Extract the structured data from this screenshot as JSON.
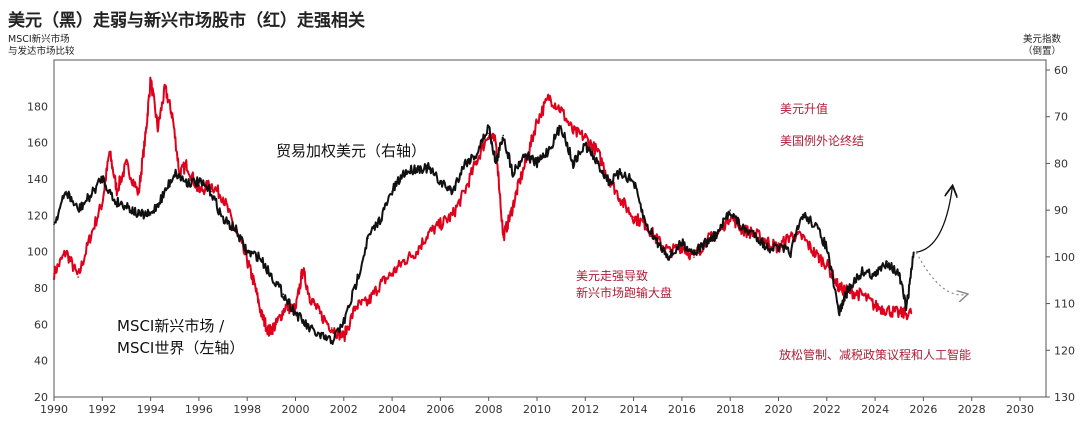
{
  "header": {
    "title": "美元（黑）走弱与新兴市场股市（红）走强相关",
    "left_axis_label": [
      "MSCI新兴市场",
      "与发达市场比较"
    ],
    "right_axis_label": [
      "美元指数",
      "（倒置）"
    ]
  },
  "annotations": {
    "dollar_series": "贸易加权美元（右轴）",
    "msci_series_line1": "MSCI新兴市场 /",
    "msci_series_line2": "MSCI世界（左轴）",
    "scenario_up": "美元升值",
    "scenario_end": "美国例外论终结",
    "dollar_strong_line1": "美元走强导致",
    "dollar_strong_line2": "新兴市场跑输大盘",
    "policy": "放松管制、减税政策议程和人工智能"
  },
  "colors": {
    "dollar": "#111111",
    "msci": "#e0001b",
    "annotation_red": "#b01c36"
  },
  "chart_data": {
    "type": "line",
    "x_range": [
      1990,
      2030
    ],
    "x_ticks": [
      "1990",
      "1992",
      "1994",
      "1996",
      "1998",
      "2000",
      "2002",
      "2004",
      "2006",
      "2008",
      "2010",
      "2012",
      "2014",
      "2016",
      "2018",
      "2020",
      "2022",
      "2024",
      "2026",
      "2028",
      "2030"
    ],
    "left_axis": {
      "ylim": [
        20,
        200
      ],
      "ticks": [
        "20",
        "40",
        "60",
        "80",
        "100",
        "120",
        "140",
        "160",
        "180"
      ]
    },
    "right_axis": {
      "ylim": [
        130,
        60
      ],
      "inverted": true,
      "ticks": [
        "60",
        "70",
        "80",
        "90",
        "100",
        "110",
        "120",
        "130"
      ]
    },
    "series": [
      {
        "axis": "left",
        "x": [
          1990,
          1990.5,
          1991,
          1991.5,
          1992,
          1992.3,
          1992.6,
          1993,
          1993.5,
          1993.8,
          1994,
          1994.3,
          1994.6,
          1994.9,
          1995.2,
          1995.5,
          1996,
          1996.5,
          1997,
          1997.5,
          1998,
          1998.3,
          1998.6,
          1998.9,
          1999.2,
          1999.6,
          2000,
          2000.3,
          2000.6,
          2001,
          2001.5,
          2002,
          2002.5,
          2003,
          2003.5,
          2004,
          2004.5,
          2005,
          2005.5,
          2006,
          2006.5,
          2007,
          2007.5,
          2008,
          2008.3,
          2008.6,
          2008.9,
          2009.2,
          2009.6,
          2010,
          2010.5,
          2011,
          2011.5,
          2012,
          2012.5,
          2013,
          2013.5,
          2014,
          2014.5,
          2015,
          2015.5,
          2016,
          2016.5,
          2017,
          2017.5,
          2018,
          2018.5,
          2019,
          2019.5,
          2020,
          2020.5,
          2021,
          2021.5,
          2022,
          2022.5,
          2023,
          2023.5,
          2024,
          2024.5,
          2025,
          2025.5
        ],
        "values": [
          88,
          100,
          86,
          108,
          127,
          155,
          134,
          148,
          132,
          165,
          195,
          168,
          190,
          175,
          143,
          148,
          133,
          137,
          130,
          112,
          95,
          82,
          65,
          56,
          60,
          70,
          68,
          90,
          75,
          66,
          58,
          53,
          70,
          72,
          82,
          88,
          95,
          100,
          110,
          115,
          120,
          133,
          150,
          165,
          160,
          108,
          120,
          135,
          152,
          172,
          185,
          178,
          166,
          163,
          155,
          140,
          128,
          119,
          115,
          106,
          100,
          103,
          97,
          106,
          110,
          120,
          112,
          110,
          106,
          102,
          109,
          108,
          99,
          93,
          80,
          78,
          76,
          70,
          68,
          66,
          66
        ]
      },
      {
        "axis": "right",
        "x": [
          1990,
          1990.5,
          1991,
          1991.5,
          1992,
          1992.5,
          1993,
          1993.5,
          1994,
          1994.5,
          1995,
          1995.5,
          1996,
          1996.5,
          1997,
          1997.5,
          1998,
          1998.5,
          1999,
          1999.5,
          2000,
          2000.5,
          2001,
          2001.5,
          2002,
          2002.5,
          2003,
          2003.5,
          2004,
          2004.5,
          2005,
          2005.5,
          2006,
          2006.5,
          2007,
          2007.5,
          2008,
          2008.3,
          2008.6,
          2009,
          2009.5,
          2010,
          2010.5,
          2011,
          2011.5,
          2012,
          2012.5,
          2013,
          2013.5,
          2014,
          2014.5,
          2015,
          2015.5,
          2016,
          2016.5,
          2017,
          2017.5,
          2018,
          2018.5,
          2019,
          2019.5,
          2020,
          2020.5,
          2021,
          2021.5,
          2022,
          2022.5,
          2022.8,
          2023,
          2023.5,
          2024,
          2024.5,
          2025,
          2025.3,
          2025.6
        ],
        "values": [
          93,
          86,
          90,
          87,
          83,
          88,
          89,
          91,
          91,
          87,
          82,
          84,
          84,
          86,
          92,
          94,
          99,
          100,
          104,
          108,
          112,
          115,
          117,
          118,
          114,
          106,
          96,
          92,
          86,
          82,
          81,
          81,
          84,
          86,
          80,
          78,
          72,
          80,
          74,
          82,
          78,
          80,
          77,
          72,
          80,
          76,
          80,
          84,
          82,
          84,
          93,
          97,
          100,
          97,
          99,
          97,
          95,
          90,
          94,
          95,
          98,
          98,
          99,
          91,
          93,
          98,
          112,
          108,
          106,
          103,
          104,
          101,
          104,
          111,
          99
        ]
      }
    ],
    "projections": [
      {
        "style": "solid arrow",
        "x": [
          2025.7,
          2027.2
        ],
        "values": [
          99,
          85
        ]
      },
      {
        "style": "dotted arrow",
        "x": [
          2025.7,
          2027.8
        ],
        "values": [
          99,
          108
        ]
      }
    ]
  }
}
